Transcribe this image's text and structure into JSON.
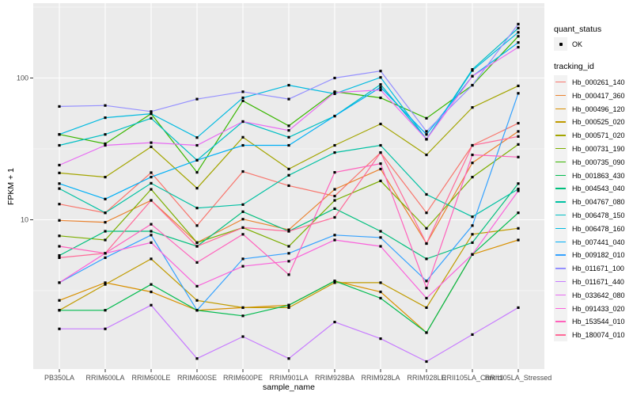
{
  "chart_data": {
    "type": "line",
    "title": "",
    "xlabel": "sample_name",
    "ylabel": "FPKM + 1",
    "y_scale": "log10",
    "y_ticks": [
      10,
      100
    ],
    "y_minor_ticks": [
      3.162,
      31.62,
      316.2
    ],
    "ylim": [
      0.88,
      326
    ],
    "grid": "on",
    "legend_position": "right",
    "point_marker": "small black square (quant_status OK)",
    "categories": [
      "PB350LA",
      "RRIM600LA",
      "RRIM600LE",
      "RRIM600SE",
      "RRIM600PE",
      "RRIM901LA",
      "RRIM928BA",
      "RRIM928LA",
      "RRIM928LE",
      "RRII105LA_Control",
      "RRII105LA_Stressed"
    ],
    "series": [
      {
        "name": "Hb_000261_140",
        "color": "#F8766D",
        "values": [
          12.9,
          11.2,
          21.5,
          9.1,
          21.9,
          17.4,
          14.7,
          29.8,
          11.2,
          33.5,
          48
        ]
      },
      {
        "name": "Hb_000417_360",
        "color": "#EA8331",
        "values": [
          9.9,
          9.6,
          13.7,
          6.9,
          10.1,
          8.5,
          16.4,
          22.8,
          6.8,
          25.2,
          42
        ]
      },
      {
        "name": "Hb_000496_120",
        "color": "#D89000",
        "values": [
          2.7,
          3.6,
          3.1,
          2.3,
          2.4,
          2.5,
          3.7,
          3.1,
          1.6,
          5.7,
          7.2
        ]
      },
      {
        "name": "Hb_000525_020",
        "color": "#C09B00",
        "values": [
          2.3,
          3.5,
          5.3,
          2.7,
          2.4,
          2.4,
          3.6,
          3.6,
          2.4,
          7.9,
          8.7
        ]
      },
      {
        "name": "Hb_000571_020",
        "color": "#A3A500",
        "values": [
          21.4,
          20,
          32.7,
          16.7,
          38.2,
          22.8,
          33.5,
          47.4,
          28.7,
          62,
          88
        ]
      },
      {
        "name": "Hb_000731_190",
        "color": "#7CAE00",
        "values": [
          7.7,
          7.2,
          16.4,
          6.9,
          8.8,
          6.5,
          13.7,
          18.8,
          8.7,
          20,
          34
        ]
      },
      {
        "name": "Hb_000735_090",
        "color": "#39B600",
        "values": [
          40,
          34.4,
          56,
          21.6,
          69,
          46,
          80,
          72.5,
          52,
          89,
          197
        ]
      },
      {
        "name": "Hb_001863_430",
        "color": "#00BB4E",
        "values": [
          2.3,
          2.3,
          3.5,
          2.3,
          2.1,
          2.5,
          3.7,
          2.8,
          1.6,
          5.7,
          11.2
        ]
      },
      {
        "name": "Hb_004543_040",
        "color": "#00BF7D",
        "values": [
          5.6,
          8.3,
          8.3,
          6.5,
          11.4,
          8.3,
          12,
          8.3,
          5.3,
          6.9,
          18
        ]
      },
      {
        "name": "Hb_004767_080",
        "color": "#00C1A3",
        "values": [
          16.6,
          11.2,
          18.1,
          12.1,
          12.8,
          20.6,
          29.8,
          33.5,
          15.1,
          10.5,
          16.5
        ]
      },
      {
        "name": "Hb_006478_150",
        "color": "#00BFC4",
        "values": [
          33.5,
          40,
          52,
          26.3,
          49.3,
          38.2,
          53.9,
          90,
          37,
          115,
          225
        ]
      },
      {
        "name": "Hb_006478_160",
        "color": "#00BAE0",
        "values": [
          40,
          52.5,
          56,
          38,
          72.5,
          89,
          77.4,
          101,
          37,
          113,
          210
        ]
      },
      {
        "name": "Hb_007441_040",
        "color": "#00B0F6",
        "values": [
          18,
          14,
          20,
          26.3,
          33.5,
          33.5,
          53.9,
          86,
          40,
          103,
          178
        ]
      },
      {
        "name": "Hb_009182_010",
        "color": "#35A2FF",
        "values": [
          3.6,
          5.4,
          7.8,
          2.3,
          5.3,
          5.8,
          7.8,
          7.5,
          3.7,
          9.1,
          78
        ]
      },
      {
        "name": "Hb_011671_100",
        "color": "#9590FF",
        "values": [
          63,
          64,
          58,
          71,
          80,
          71,
          100,
          112,
          42,
          89,
          240
        ]
      },
      {
        "name": "Hb_011671_440",
        "color": "#C77CFF",
        "values": [
          1.7,
          1.7,
          2.5,
          1.05,
          1.5,
          1.05,
          1.9,
          1.45,
          1.0,
          1.55,
          2.4
        ]
      },
      {
        "name": "Hb_033642_080",
        "color": "#E76BF3",
        "values": [
          24.3,
          33.5,
          35,
          33.5,
          49.3,
          42.7,
          79,
          82.3,
          37,
          103,
          165
        ]
      },
      {
        "name": "Hb_091433_020",
        "color": "#FA62DB",
        "values": [
          3.6,
          5.8,
          6.9,
          3.4,
          4.7,
          5.1,
          7.2,
          6.5,
          2.8,
          5.7,
          16
        ]
      },
      {
        "name": "Hb_153544_010",
        "color": "#FF62BC",
        "values": [
          6.5,
          5.8,
          9.3,
          5.0,
          7.9,
          4.1,
          21.6,
          24.9,
          3.3,
          28.7,
          27.7
        ]
      },
      {
        "name": "Hb_180074_010",
        "color": "#FF6A98",
        "values": [
          5.4,
          5.8,
          13.7,
          6.5,
          8.8,
          8.3,
          10.4,
          29.8,
          6.8,
          33.5,
          38.7
        ]
      }
    ]
  },
  "legend": {
    "quant_status_title": "quant_status",
    "quant_status_value": "OK",
    "tracking_title": "tracking_id"
  },
  "theme": {
    "panel_bg": "#EBEBEB",
    "grid_color": "#FFFFFF",
    "tick_text_color": "#4D4D4D",
    "point_color": "#000000",
    "key_bg": "#F2F2F2"
  }
}
